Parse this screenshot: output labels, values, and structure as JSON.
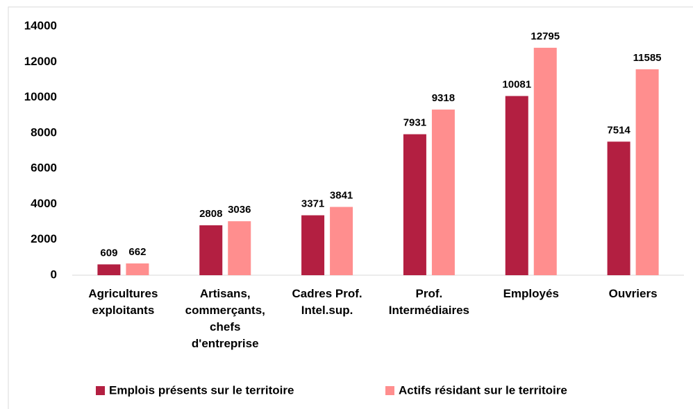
{
  "chart_data": {
    "type": "bar",
    "categories": [
      "Agricultures exploitants",
      "Artisans, commerçants, chefs d'entreprise",
      "Cadres Prof. Intel.sup.",
      "Prof. Intermédiaires",
      "Employés",
      "Ouvriers"
    ],
    "series": [
      {
        "name": "Emplois présents sur le territoire",
        "color": "#b31f41",
        "values": [
          609,
          2808,
          3371,
          7931,
          10081,
          7514
        ]
      },
      {
        "name": "Actifs résidant sur le territoire",
        "color": "#ff8e8e",
        "values": [
          662,
          3036,
          3841,
          9318,
          12795,
          11585
        ]
      }
    ],
    "ylim": [
      0,
      14000
    ],
    "yticks": [
      0,
      2000,
      4000,
      6000,
      8000,
      10000,
      12000,
      14000
    ],
    "grid": false,
    "legend": "bottom"
  }
}
